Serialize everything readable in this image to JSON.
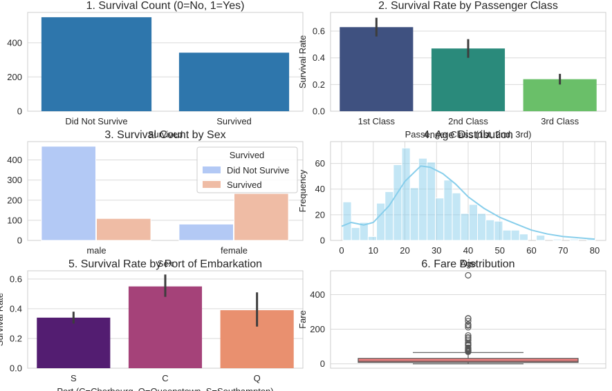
{
  "chart_data": [
    {
      "type": "bar",
      "title": "1. Survival Count (0=No, 1=Yes)",
      "xlabel": "Survived",
      "ylabel": "",
      "categories": [
        "Did Not Survive",
        "Survived"
      ],
      "values": [
        549,
        342
      ],
      "ylim": [
        0,
        577
      ],
      "yticks": [
        0,
        200,
        400
      ],
      "colors": [
        "#2e76ac",
        "#2e76ac"
      ],
      "grid": true
    },
    {
      "type": "bar",
      "title": "2. Survival Rate by Passenger Class",
      "xlabel": "Passenger Class (1st, 2nd, 3rd)",
      "ylabel": "Survival Rate",
      "categories": [
        "1st Class",
        "2nd Class",
        "3rd Class"
      ],
      "values": [
        0.63,
        0.47,
        0.24
      ],
      "errors": [
        [
          0.56,
          0.7
        ],
        [
          0.4,
          0.54
        ],
        [
          0.2,
          0.28
        ]
      ],
      "ylim": [
        0,
        0.74
      ],
      "yticks": [
        0.0,
        0.2,
        0.4,
        0.6
      ],
      "colors": [
        "#3f5180",
        "#2a8a7b",
        "#6abf69"
      ],
      "grid": true
    },
    {
      "type": "bar",
      "title": "3. Survival Count by Sex",
      "xlabel": "Sex",
      "ylabel": "",
      "categories": [
        "male",
        "female"
      ],
      "series": [
        {
          "name": "Did Not Survive",
          "values": [
            468,
            81
          ],
          "color": "#b3c9f5"
        },
        {
          "name": "Survived",
          "values": [
            109,
            233
          ],
          "color": "#efbca5"
        }
      ],
      "legend_title": "Survived",
      "legend_position": "top-right",
      "ylim": [
        0,
        491
      ],
      "yticks": [
        0,
        100,
        200,
        300,
        400
      ],
      "grid": true
    },
    {
      "type": "bar",
      "title": "4. Age Distribution",
      "xlabel": "Age",
      "ylabel": "Frequency",
      "bin_edges": [
        0.42,
        3.08,
        5.74,
        8.39,
        11.05,
        13.71,
        16.37,
        19.03,
        21.68,
        24.34,
        27.0,
        29.66,
        32.32,
        34.98,
        37.63,
        40.29,
        42.95,
        45.61,
        48.27,
        50.92,
        53.58,
        56.24,
        58.9,
        61.56,
        64.21,
        66.87,
        69.53,
        72.19,
        74.85,
        77.51,
        80.16
      ],
      "values": [
        30,
        10,
        14,
        3,
        29,
        38,
        59,
        72,
        41,
        64,
        61,
        33,
        47,
        37,
        21,
        28,
        21,
        16,
        15,
        8,
        8,
        5,
        0,
        4,
        0,
        1,
        0,
        1,
        0,
        1
      ],
      "kde": [
        [
          0,
          11
        ],
        [
          3,
          14
        ],
        [
          7,
          12
        ],
        [
          10,
          14
        ],
        [
          15,
          27
        ],
        [
          20,
          46
        ],
        [
          25,
          58
        ],
        [
          28,
          57
        ],
        [
          32,
          52
        ],
        [
          36,
          44
        ],
        [
          40,
          34
        ],
        [
          45,
          25
        ],
        [
          50,
          18
        ],
        [
          55,
          13
        ],
        [
          60,
          8
        ],
        [
          65,
          5
        ],
        [
          70,
          3
        ],
        [
          75,
          2
        ],
        [
          80,
          1
        ]
      ],
      "xlim": [
        -3.5,
        83.5
      ],
      "ylim": [
        0,
        77
      ],
      "xticks": [
        0,
        10,
        20,
        30,
        40,
        50,
        60,
        70,
        80
      ],
      "yticks": [
        0,
        20,
        40,
        60
      ],
      "color": "#87ceeb",
      "grid": true
    },
    {
      "type": "bar",
      "title": "5. Survival Rate by Port of Embarkation",
      "xlabel": "Port (C=Cherbourg, Q=Queenstown, S=Southampton)",
      "ylabel": "Survival Rate",
      "categories": [
        "S",
        "C",
        "Q"
      ],
      "values": [
        0.34,
        0.55,
        0.39
      ],
      "errors": [
        [
          0.3,
          0.38
        ],
        [
          0.48,
          0.63
        ],
        [
          0.28,
          0.51
        ]
      ],
      "ylim": [
        0,
        0.655
      ],
      "yticks": [
        0.0,
        0.2,
        0.4,
        0.6
      ],
      "colors": [
        "#531d71",
        "#a54279",
        "#e9906f"
      ],
      "grid": true
    },
    {
      "type": "scatter",
      "title": "6. Fare Distribution",
      "xlabel": "",
      "ylabel": "Fare",
      "box": {
        "min": 0,
        "q1": 7.9,
        "median": 14.45,
        "q3": 31,
        "max": 65
      },
      "outliers": [
        512,
        263,
        262,
        247,
        227,
        221,
        211,
        164,
        153,
        146,
        135,
        120,
        113,
        110,
        106,
        93,
        90,
        86,
        83,
        80,
        78,
        77,
        76,
        73,
        71,
        69
      ],
      "ylim": [
        -25.6,
        537.9
      ],
      "yticks": [
        0,
        200,
        400
      ],
      "color": "#f08080",
      "grid": true
    }
  ]
}
